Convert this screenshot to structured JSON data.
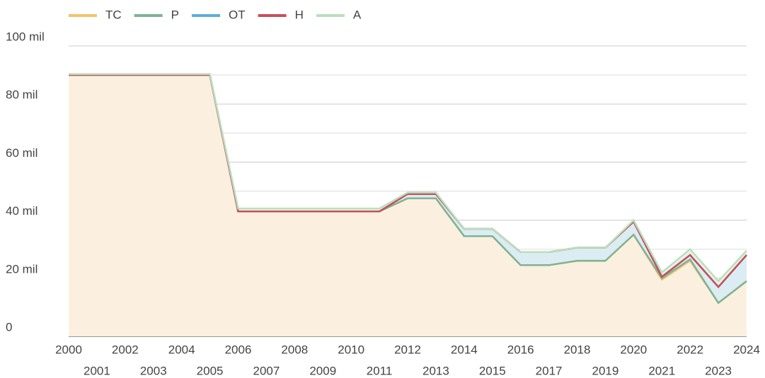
{
  "chart_data": {
    "type": "stacked_area",
    "x": [
      2000,
      2001,
      2002,
      2003,
      2004,
      2005,
      2006,
      2007,
      2008,
      2009,
      2010,
      2011,
      2012,
      2013,
      2014,
      2015,
      2016,
      2017,
      2018,
      2019,
      2020,
      2021,
      2022,
      2023,
      2024
    ],
    "series": [
      {
        "name": "TC",
        "color": "#f2c36b",
        "values": [
          90,
          90,
          90,
          90,
          90,
          90,
          43,
          43,
          43,
          43,
          43,
          43,
          47.5,
          47.5,
          34.5,
          34.5,
          24.5,
          24.5,
          26,
          26,
          35,
          19.5,
          26,
          11.5,
          19
        ]
      },
      {
        "name": "P",
        "color": "#7db394",
        "values": [
          0,
          0,
          0,
          0,
          0,
          0,
          0,
          0,
          0,
          0,
          0,
          0,
          0,
          0,
          0,
          0,
          0,
          0,
          0,
          0,
          0,
          0.5,
          0.5,
          0,
          0
        ]
      },
      {
        "name": "OT",
        "color": "#5aaedc",
        "values": [
          0,
          0,
          0,
          0,
          0,
          0,
          0,
          0,
          0,
          0,
          0,
          0,
          1.5,
          1.5,
          2.5,
          2.5,
          4.5,
          4.5,
          4.5,
          4.5,
          4.5,
          0.5,
          1.5,
          5.5,
          9
        ]
      },
      {
        "name": "H",
        "color": "#cc4c5a",
        "values": [
          0,
          0,
          0,
          0,
          0,
          0,
          0,
          0,
          0,
          0,
          0,
          0,
          0,
          0,
          0,
          0,
          0,
          0,
          0,
          0,
          0,
          0,
          0,
          0,
          0
        ]
      },
      {
        "name": "A",
        "color": "#b9dfbc",
        "values": [
          0.3,
          0.3,
          0.3,
          0.3,
          0.3,
          0.3,
          1,
          1,
          1,
          1,
          1,
          1,
          0.5,
          0.5,
          0,
          0,
          0,
          0,
          0,
          0,
          0.5,
          1.5,
          2,
          2,
          1.5
        ]
      }
    ],
    "xlim": [
      2000,
      2024
    ],
    "xticks": [
      2000,
      2001,
      2002,
      2003,
      2004,
      2005,
      2006,
      2007,
      2008,
      2009,
      2010,
      2011,
      2012,
      2013,
      2014,
      2015,
      2016,
      2017,
      2018,
      2019,
      2020,
      2021,
      2022,
      2023,
      2024
    ],
    "ylim": [
      0,
      100
    ],
    "yticks": [
      0,
      {
        "value": 20,
        "label": "20 mil"
      },
      {
        "value": 40,
        "label": "40 mil"
      },
      {
        "value": 60,
        "label": "60 mil"
      },
      {
        "value": 80,
        "label": "80 mil"
      },
      {
        "value": 100,
        "label": "100 mil"
      }
    ],
    "y_minor_ticks": [
      10,
      30,
      50,
      70,
      90
    ],
    "grid": true,
    "legend": "top-left"
  }
}
